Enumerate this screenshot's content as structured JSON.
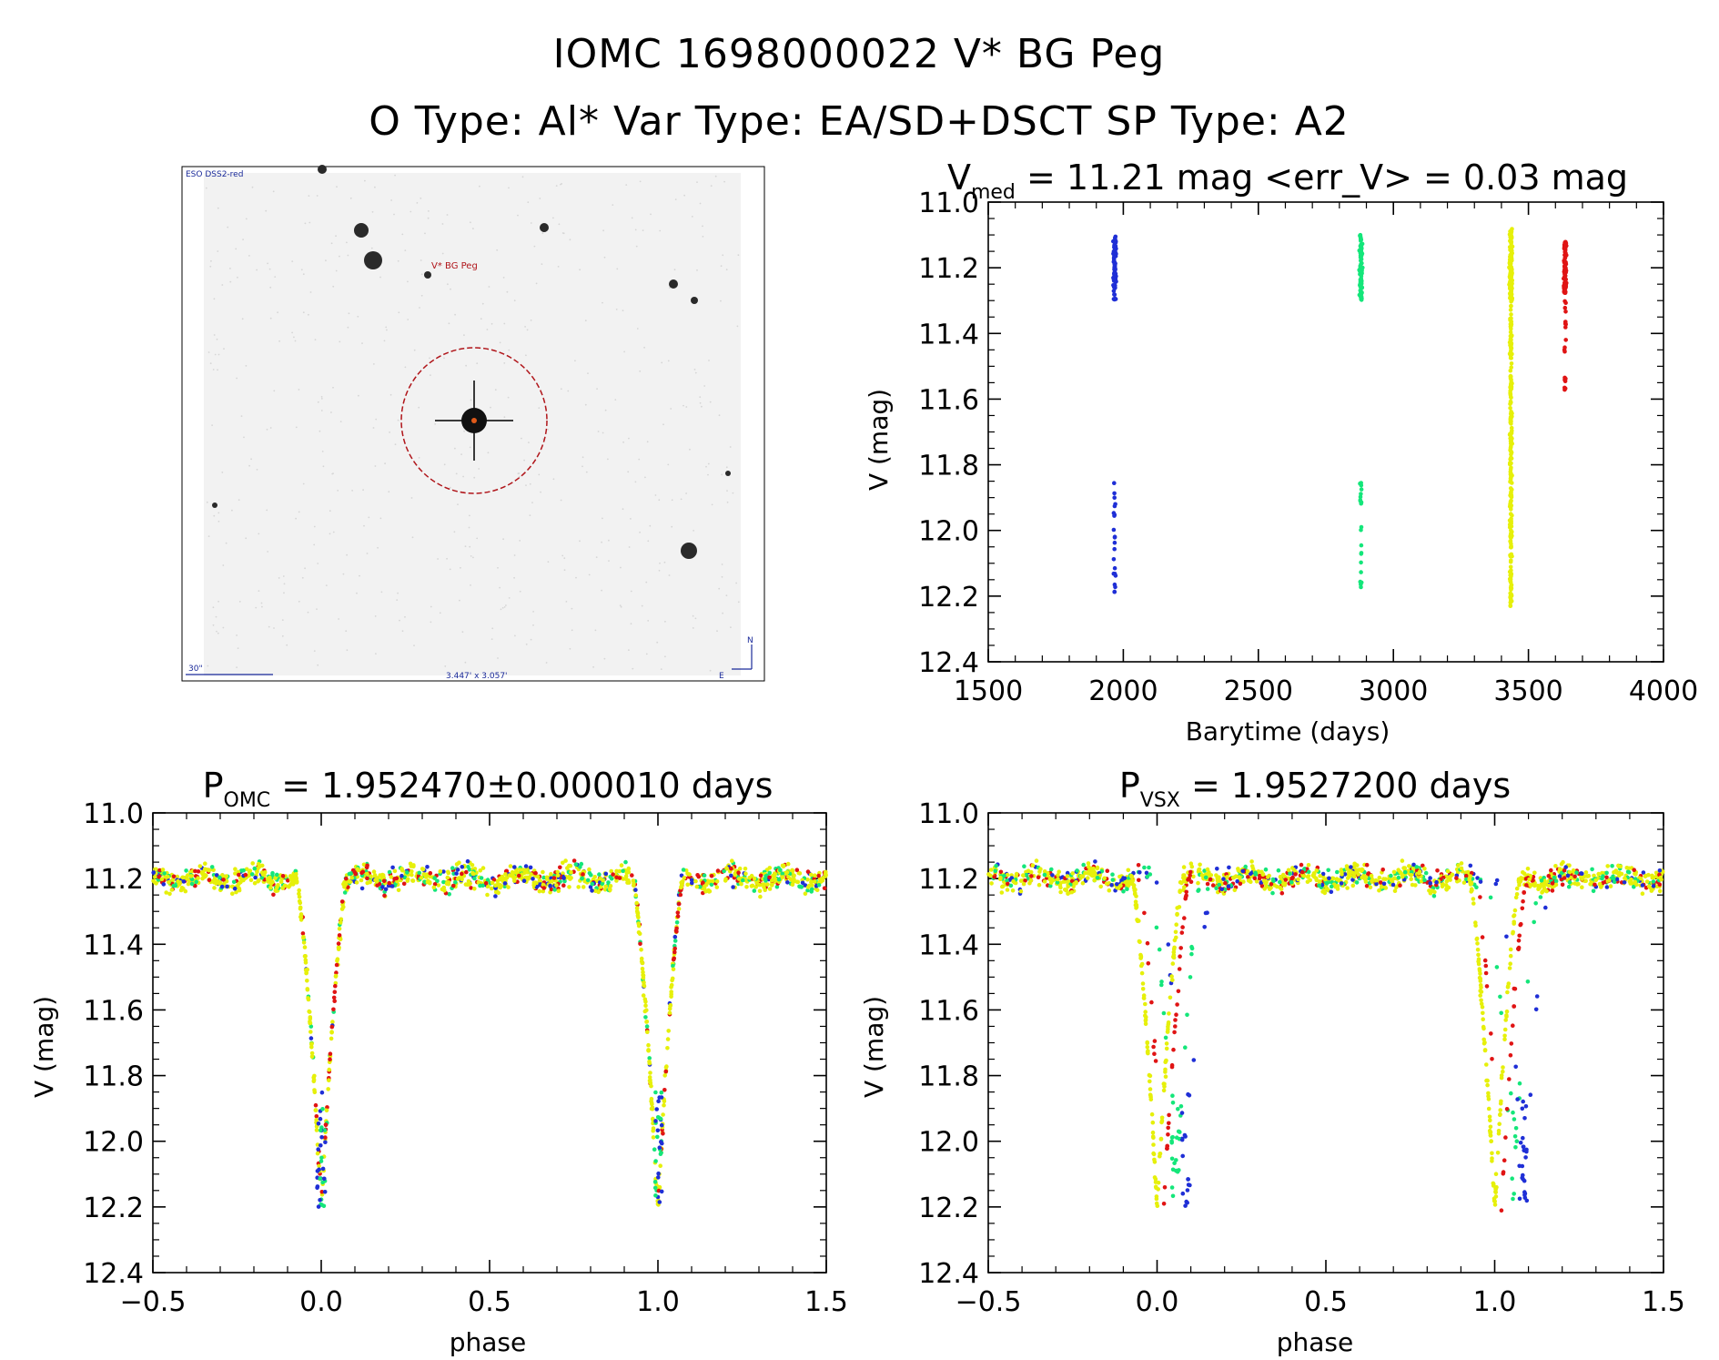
{
  "header": {
    "line1": "IOMC 1698000022   V* BG Peg",
    "line2": "O Type: Al*  Var Type: EA/SD+DSCT  SP Type: A2"
  },
  "finder_image": {
    "survey_label": "ESO DSS2-red",
    "target_label": "V* BG Peg",
    "scale_label": "30\"",
    "size_label": "3.447' x 3.057'",
    "north_label": "N",
    "east_label": "E"
  },
  "colors": {
    "blue": "#1f2fd6",
    "green": "#14e67a",
    "yellow": "#e6f00a",
    "red": "#e01414",
    "circle": "#b0151a"
  },
  "chart_data": [
    {
      "id": "lightcurve",
      "type": "scatter",
      "title_main": "V",
      "title_sub": "med",
      "title_rest": " = 11.21 mag <err_V> = 0.03 mag",
      "xlabel": "Barytime (days)",
      "ylabel": "V (mag)",
      "xlim": [
        1500,
        4000
      ],
      "ylim": [
        12.4,
        11.0
      ],
      "xticks": [
        1500,
        2000,
        2500,
        3000,
        3500,
        4000
      ],
      "yticks": [
        11.0,
        11.2,
        11.4,
        11.6,
        11.8,
        12.0,
        12.2,
        12.4
      ],
      "series": [
        {
          "name": "blue",
          "x_center": 1968,
          "y_range": [
            11.1,
            12.2
          ]
        },
        {
          "name": "green",
          "x_center": 2880,
          "y_range": [
            11.1,
            12.18
          ]
        },
        {
          "name": "yellow",
          "x_center": 3435,
          "y_range": [
            11.08,
            12.24
          ]
        },
        {
          "name": "red",
          "x_center": 3635,
          "y_range": [
            11.12,
            11.58
          ]
        }
      ]
    },
    {
      "id": "phase_omc",
      "type": "scatter",
      "title_main": "P",
      "title_sub": "OMC",
      "title_rest": " = 1.952470±0.000010 days",
      "xlabel": "phase",
      "ylabel": "V (mag)",
      "xlim": [
        -0.5,
        1.5
      ],
      "ylim": [
        12.4,
        11.0
      ],
      "xticks": [
        -0.5,
        0.0,
        0.5,
        1.0,
        1.5
      ],
      "xtick_labels": [
        "−0.5",
        "0.0",
        "0.5",
        "1.0",
        "1.5"
      ],
      "yticks": [
        11.0,
        11.2,
        11.4,
        11.6,
        11.8,
        12.0,
        12.2,
        12.4
      ],
      "baseline_mag": 11.2,
      "minimum_mag": 12.2,
      "eclipse_phases": [
        0.0,
        1.0
      ]
    },
    {
      "id": "phase_vsx",
      "type": "scatter",
      "title_main": "P",
      "title_sub": "VSX",
      "title_rest": " = 1.9527200 days",
      "xlabel": "phase",
      "ylabel": "V (mag)",
      "xlim": [
        -0.5,
        1.5
      ],
      "ylim": [
        12.4,
        11.0
      ],
      "xticks": [
        -0.5,
        0.0,
        0.5,
        1.0,
        1.5
      ],
      "xtick_labels": [
        "−0.5",
        "0.0",
        "0.5",
        "1.0",
        "1.5"
      ],
      "yticks": [
        11.0,
        11.2,
        11.4,
        11.6,
        11.8,
        12.0,
        12.2,
        12.4
      ],
      "baseline_mag": 11.2,
      "minimum_mag": 12.2,
      "eclipse_phases": [
        0.0,
        1.0
      ]
    }
  ]
}
